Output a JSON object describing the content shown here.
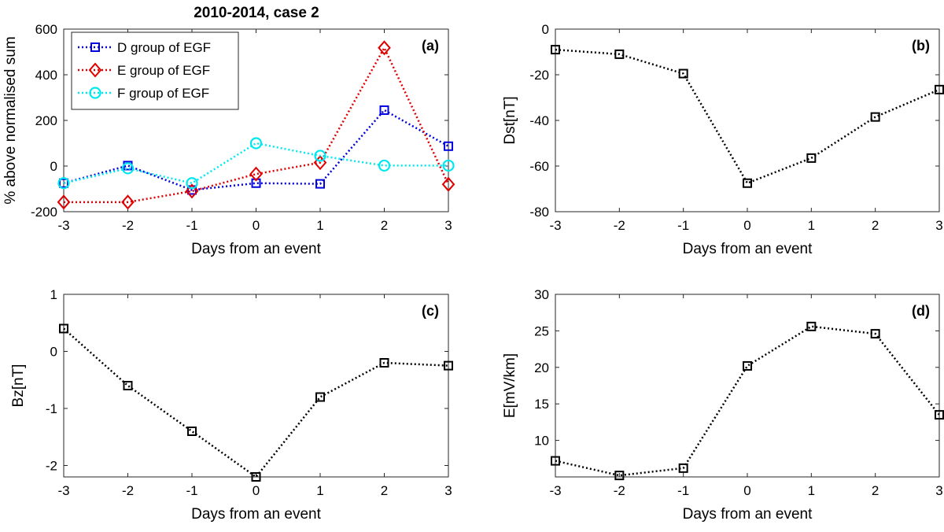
{
  "figure_title": "2010-2014, case 2",
  "chart_data": [
    {
      "id": "a",
      "type": "line",
      "panel_label": "(a)",
      "x": [
        -3,
        -2,
        -1,
        0,
        1,
        2,
        3
      ],
      "xlabel": "Days from an event",
      "ylabel": "% above normalised sum",
      "xlim": [
        -3,
        3
      ],
      "ylim": [
        -200,
        600
      ],
      "xticks": [
        -3,
        -2,
        -1,
        0,
        1,
        2,
        3
      ],
      "yticks": [
        -200,
        0,
        200,
        400,
        600
      ],
      "legend_position": "top-left",
      "series": [
        {
          "name": "D group of EGF",
          "color": "#0000e0",
          "marker": "square",
          "values": [
            -75,
            2,
            -105,
            -75,
            -78,
            245,
            87
          ]
        },
        {
          "name": "E group of EGF",
          "color": "#e00000",
          "marker": "diamond",
          "values": [
            -158,
            -158,
            -110,
            -35,
            15,
            518,
            -80
          ]
        },
        {
          "name": "F group of EGF",
          "color": "#00e8ef",
          "marker": "circle",
          "values": [
            -75,
            -10,
            -75,
            100,
            45,
            2,
            2
          ]
        }
      ]
    },
    {
      "id": "b",
      "type": "line",
      "panel_label": "(b)",
      "x": [
        -3,
        -2,
        -1,
        0,
        1,
        2,
        3
      ],
      "xlabel": "Days from an event",
      "ylabel": "Dst[nT]",
      "xlim": [
        -3,
        3
      ],
      "ylim": [
        -80,
        0
      ],
      "xticks": [
        -3,
        -2,
        -1,
        0,
        1,
        2,
        3
      ],
      "yticks": [
        -80,
        -60,
        -40,
        -20,
        0
      ],
      "series": [
        {
          "name": "Dst",
          "color": "#000000",
          "marker": "square",
          "values": [
            -9,
            -11,
            -19.5,
            -67.5,
            -56.5,
            -38.5,
            -26.5
          ]
        }
      ]
    },
    {
      "id": "c",
      "type": "line",
      "panel_label": "(c)",
      "x": [
        -3,
        -2,
        -1,
        0,
        1,
        2,
        3
      ],
      "xlabel": "Days from an event",
      "ylabel": "Bz[nT]",
      "xlim": [
        -3,
        3
      ],
      "ylim": [
        -2.2,
        1
      ],
      "xticks": [
        -3,
        -2,
        -1,
        0,
        1,
        2,
        3
      ],
      "yticks": [
        -2,
        -1,
        0,
        1
      ],
      "series": [
        {
          "name": "Bz",
          "color": "#000000",
          "marker": "square",
          "values": [
            0.4,
            -0.6,
            -1.4,
            -2.2,
            -0.8,
            -0.2,
            -0.25
          ]
        }
      ]
    },
    {
      "id": "d",
      "type": "line",
      "panel_label": "(d)",
      "x": [
        -3,
        -2,
        -1,
        0,
        1,
        2,
        3
      ],
      "xlabel": "Days from an event",
      "ylabel": "E[mV/km]",
      "xlim": [
        -3,
        3
      ],
      "ylim": [
        5,
        30
      ],
      "xticks": [
        -3,
        -2,
        -1,
        0,
        1,
        2,
        3
      ],
      "yticks": [
        10,
        15,
        20,
        25,
        30
      ],
      "series": [
        {
          "name": "E",
          "color": "#000000",
          "marker": "square",
          "values": [
            7.2,
            5.2,
            6.2,
            20.2,
            25.6,
            24.6,
            13.5
          ]
        }
      ]
    }
  ]
}
